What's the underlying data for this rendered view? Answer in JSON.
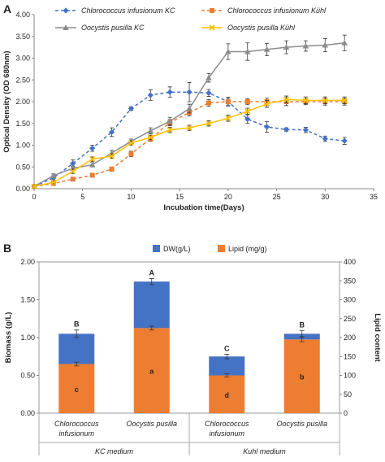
{
  "chart_data": [
    {
      "panel": "A",
      "type": "line",
      "xlabel": "Incubation time(Days)",
      "ylabel": "Optical Density (OD 680nm)",
      "xlim": [
        0,
        35
      ],
      "ylim": [
        0,
        4.0
      ],
      "xticks": [
        0,
        5,
        10,
        15,
        20,
        25,
        30,
        35
      ],
      "yticks": [
        "0.00",
        "0.50",
        "1.00",
        "1.50",
        "2.00",
        "2.50",
        "3.00",
        "3.50",
        "4.00"
      ],
      "grid": false,
      "legend": "top",
      "x": [
        0,
        2,
        4,
        6,
        8,
        10,
        12,
        14,
        16,
        18,
        20,
        22,
        24,
        26,
        28,
        30,
        32
      ],
      "series": [
        {
          "name": "Chlorococcus infusionum  KC",
          "color": "#4472c4",
          "dash": true,
          "marker": "diamond",
          "values": [
            0.05,
            0.25,
            0.58,
            0.93,
            1.3,
            1.84,
            2.15,
            2.22,
            2.22,
            2.2,
            2.0,
            1.6,
            1.42,
            1.36,
            1.35,
            1.15,
            1.1
          ],
          "errors": [
            0.03,
            0.05,
            0.08,
            0.07,
            0.1,
            0.04,
            0.12,
            0.12,
            0.22,
            0.08,
            0.1,
            0.1,
            0.12,
            0.04,
            0.06,
            0.06,
            0.08
          ]
        },
        {
          "name": "Chlorococcus infusionum  Kühl",
          "color": "#ed7d31",
          "dash": true,
          "marker": "square",
          "values": [
            0.05,
            0.12,
            0.22,
            0.31,
            0.45,
            0.8,
            1.15,
            1.52,
            1.75,
            1.97,
            2.0,
            2.0,
            2.0,
            2.0,
            2.0,
            2.0,
            2.0
          ],
          "errors": [
            0.02,
            0.03,
            0.04,
            0.04,
            0.05,
            0.06,
            0.06,
            0.07,
            0.08,
            0.08,
            0.08,
            0.07,
            0.08,
            0.09,
            0.07,
            0.08,
            0.08
          ]
        },
        {
          "name": "Oocystis pusilla KC",
          "color": "#8c8c8c",
          "dash": false,
          "marker": "triangle",
          "values": [
            0.05,
            0.3,
            0.47,
            0.55,
            0.82,
            1.09,
            1.33,
            1.55,
            1.84,
            2.55,
            3.15,
            3.15,
            3.2,
            3.25,
            3.28,
            3.3,
            3.35
          ],
          "errors": [
            0.03,
            0.04,
            0.05,
            0.05,
            0.06,
            0.05,
            0.07,
            0.09,
            0.1,
            0.1,
            0.18,
            0.2,
            0.14,
            0.15,
            0.12,
            0.15,
            0.18
          ]
        },
        {
          "name": "Oocystis pusilla Kühl",
          "color": "#ffc000",
          "dash": false,
          "marker": "x",
          "values": [
            0.05,
            0.15,
            0.4,
            0.68,
            0.75,
            1.05,
            1.18,
            1.35,
            1.4,
            1.5,
            1.62,
            1.78,
            1.95,
            2.05,
            2.03,
            2.03,
            2.03
          ],
          "errors": [
            0.02,
            0.03,
            0.05,
            0.05,
            0.05,
            0.05,
            0.05,
            0.06,
            0.06,
            0.06,
            0.07,
            0.07,
            0.08,
            0.08,
            0.08,
            0.08,
            0.08
          ]
        }
      ]
    },
    {
      "panel": "B",
      "type": "bar",
      "stacked": true,
      "ylabel": "Biomass (g/L)",
      "y2label": "Lipid content",
      "ylim": [
        0,
        2.0
      ],
      "y2lim": [
        0,
        400
      ],
      "yticks": [
        "0.00",
        "0.50",
        "1.00",
        "1.50",
        "2.00"
      ],
      "y2ticks": [
        "0",
        "50",
        "100",
        "150",
        "200",
        "250",
        "300",
        "350",
        "400"
      ],
      "legend": "top",
      "legend_entries": [
        "DW(g/L)",
        "Lipid (mg/g)"
      ],
      "colors": [
        "#4472c4",
        "#ed7d31"
      ],
      "categories": [
        {
          "line1": "Chlorococcus",
          "line2": "infusionum"
        },
        {
          "line1": "Oocystis pusilla",
          "line2": ""
        },
        {
          "line1": "Chlorococcus",
          "line2": "infusionum"
        },
        {
          "line1": "Oocystis pusilla",
          "line2": ""
        }
      ],
      "groups": [
        "KC medium",
        "Kuhl medium"
      ],
      "lipid": [
        130,
        225,
        100,
        195
      ],
      "lipid_err": [
        5,
        5,
        4,
        6
      ],
      "total": [
        1.05,
        1.74,
        0.75,
        1.05
      ],
      "total_err": [
        0.05,
        0.04,
        0.03,
        0.04
      ],
      "dw_letters": [
        "B",
        "A",
        "C",
        "B"
      ],
      "lipid_letters": [
        "c",
        "a",
        "d",
        "b"
      ]
    }
  ]
}
